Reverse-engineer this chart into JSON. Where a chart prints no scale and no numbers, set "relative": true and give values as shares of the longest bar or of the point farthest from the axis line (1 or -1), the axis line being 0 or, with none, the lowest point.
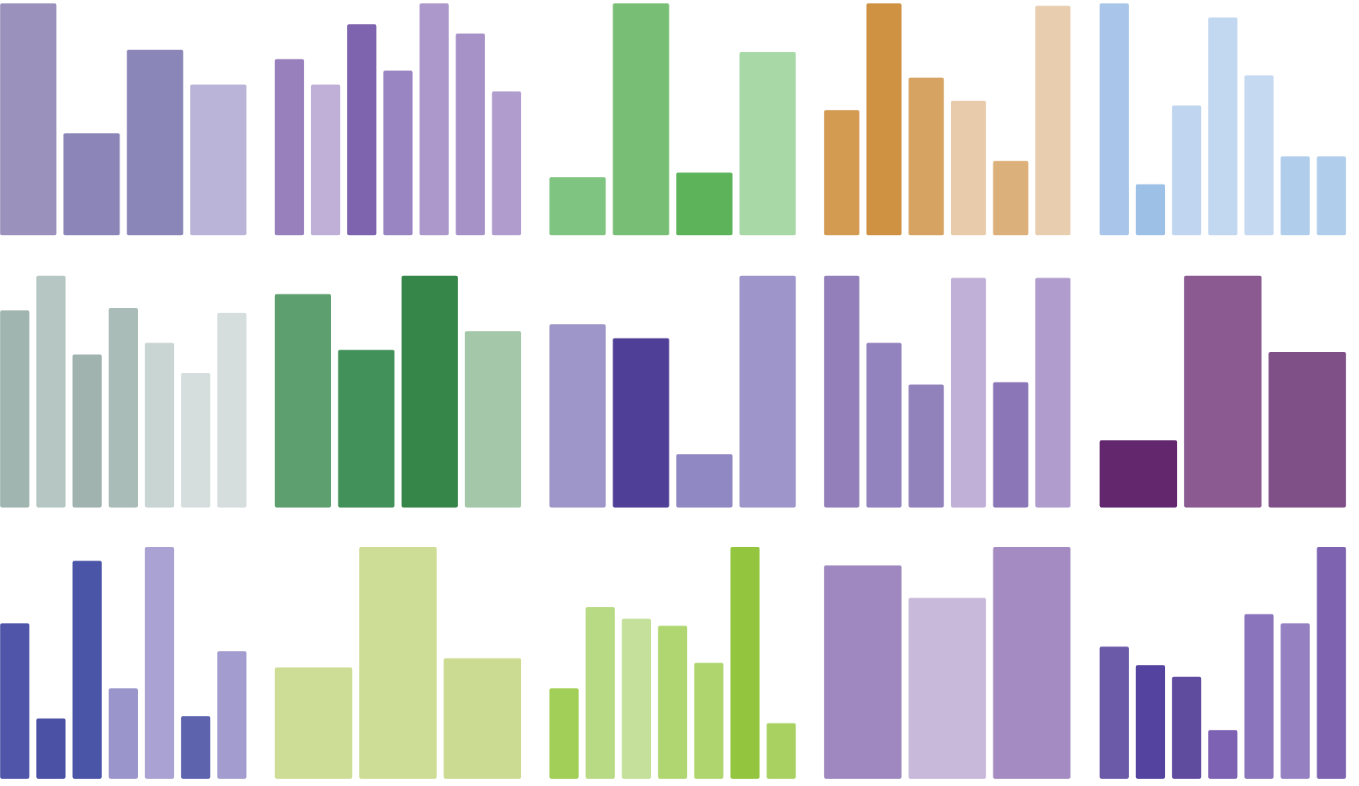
{
  "chart_data": [
    {
      "type": "bar",
      "relative": true,
      "categories": [
        null,
        null,
        null,
        null
      ],
      "values": [
        1,
        0.44,
        0.8,
        0.65
      ],
      "colors": [
        "#9a91bd",
        "#8b85b8",
        "#8b86b8",
        "#bab5d8"
      ]
    },
    {
      "type": "bar",
      "relative": true,
      "categories": [
        null,
        null,
        null,
        null,
        null,
        null,
        null
      ],
      "values": [
        0.76,
        0.65,
        0.91,
        0.71,
        1,
        0.87,
        0.62
      ],
      "colors": [
        "#9880bd",
        "#c0b0d8",
        "#7e64ae",
        "#9985c2",
        "#ad98cc",
        "#a792c8",
        "#b09dcd"
      ]
    },
    {
      "type": "bar",
      "relative": true,
      "categories": [
        null,
        null,
        null,
        null
      ],
      "values": [
        0.25,
        1,
        0.27,
        0.79
      ],
      "colors": [
        "#80c482",
        "#78be74",
        "#5cb35a",
        "#a8d8a6"
      ]
    },
    {
      "type": "bar",
      "relative": true,
      "categories": [
        null,
        null,
        null,
        null,
        null,
        null
      ],
      "values": [
        0.54,
        1,
        0.68,
        0.58,
        0.32,
        0.99
      ],
      "colors": [
        "#d39a52",
        "#cf9142",
        "#d6a362",
        "#e8cbaa",
        "#dcb07a",
        "#e8cdae"
      ]
    },
    {
      "type": "bar",
      "relative": true,
      "categories": [
        null,
        null,
        null,
        null,
        null,
        null,
        null
      ],
      "values": [
        1,
        0.22,
        0.56,
        0.94,
        0.69,
        0.34,
        0.34
      ],
      "colors": [
        "#a9c6ea",
        "#9dc0e6",
        "#c0d6f0",
        "#c2d7f0",
        "#c5d9f1",
        "#b0cdec",
        "#b0cdec"
      ]
    },
    {
      "type": "bar",
      "relative": true,
      "categories": [
        null,
        null,
        null,
        null,
        null,
        null,
        null
      ],
      "values": [
        0.85,
        1,
        0.66,
        0.86,
        0.71,
        0.58,
        0.84
      ],
      "colors": [
        "#a0b4b0",
        "#b6c7c3",
        "#a0b3af",
        "#a9bcb8",
        "#c9d5d3",
        "#d5dedd",
        "#d5dedc"
      ]
    },
    {
      "type": "bar",
      "relative": true,
      "categories": [
        null,
        null,
        null,
        null
      ],
      "values": [
        0.92,
        0.68,
        1,
        0.76
      ],
      "colors": [
        "#5e9f6f",
        "#42915a",
        "#368549",
        "#a3c7a8"
      ]
    },
    {
      "type": "bar",
      "relative": true,
      "categories": [
        null,
        null,
        null,
        null
      ],
      "values": [
        0.79,
        0.73,
        0.23,
        1
      ],
      "colors": [
        "#9e96c9",
        "#4f3f97",
        "#8f88c2",
        "#9e96ca"
      ]
    },
    {
      "type": "bar",
      "relative": true,
      "categories": [
        null,
        null,
        null,
        null,
        null,
        null
      ],
      "values": [
        1,
        0.71,
        0.53,
        0.99,
        0.54,
        0.99
      ],
      "colors": [
        "#937fba",
        "#9282bd",
        "#9282bc",
        "#c0b0d8",
        "#8b77b8",
        "#b09dcd"
      ]
    },
    {
      "type": "bar",
      "relative": true,
      "categories": [
        null,
        null,
        null
      ],
      "values": [
        0.29,
        1,
        0.67
      ],
      "colors": [
        "#62276c",
        "#8a5a90",
        "#7f5087"
      ]
    },
    {
      "type": "bar",
      "relative": true,
      "categories": [
        null,
        null,
        null,
        null,
        null,
        null,
        null
      ],
      "values": [
        0.67,
        0.26,
        0.94,
        0.39,
        1,
        0.27,
        0.55
      ],
      "colors": [
        "#5055a9",
        "#4b52a6",
        "#4a55a7",
        "#9a96cb",
        "#a9a2d2",
        "#5e63ae",
        "#a39dcf"
      ]
    },
    {
      "type": "bar",
      "relative": true,
      "categories": [
        null,
        null,
        null
      ],
      "values": [
        0.48,
        1,
        0.52
      ],
      "colors": [
        "#cddd96",
        "#cddd95",
        "#cbdb91"
      ]
    },
    {
      "type": "bar",
      "relative": true,
      "categories": [
        null,
        null,
        null,
        null,
        null,
        null,
        null
      ],
      "values": [
        0.39,
        0.74,
        0.69,
        0.66,
        0.5,
        1,
        0.24
      ],
      "colors": [
        "#a2cf58",
        "#b8da84",
        "#c4e09a",
        "#b0d672",
        "#aed56e",
        "#93c63e",
        "#a8d162"
      ]
    },
    {
      "type": "bar",
      "relative": true,
      "categories": [
        null,
        null,
        null
      ],
      "values": [
        0.92,
        0.78,
        1
      ],
      "colors": [
        "#9e88bf",
        "#c8b8da",
        "#a48bc2"
      ]
    },
    {
      "type": "bar",
      "relative": true,
      "categories": [
        null,
        null,
        null,
        null,
        null,
        null,
        null
      ],
      "values": [
        0.57,
        0.49,
        0.44,
        0.21,
        0.71,
        0.67,
        1
      ],
      "colors": [
        "#6b5aa8",
        "#5444a0",
        "#5f4c9f",
        "#7d61b3",
        "#8a74bb",
        "#9580c2",
        "#7d63b0"
      ]
    }
  ]
}
